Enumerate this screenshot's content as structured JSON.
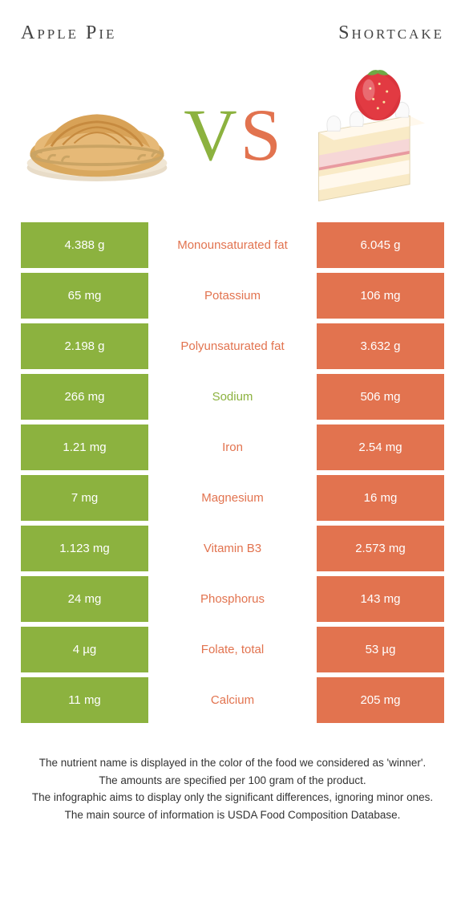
{
  "colors": {
    "left": "#8cb23f",
    "right": "#e2734f",
    "vs_v": "#8cb23f",
    "vs_s": "#e2734f",
    "bg": "#ffffff",
    "text": "#333333"
  },
  "titles": {
    "left": "Apple Pie",
    "right": "Shortcake"
  },
  "vs": {
    "v": "V",
    "s": "S"
  },
  "rows": [
    {
      "left": "4.388 g",
      "label": "Monounsaturated fat",
      "right": "6.045 g",
      "winner": "right"
    },
    {
      "left": "65 mg",
      "label": "Potassium",
      "right": "106 mg",
      "winner": "right"
    },
    {
      "left": "2.198 g",
      "label": "Polyunsaturated fat",
      "right": "3.632 g",
      "winner": "right"
    },
    {
      "left": "266 mg",
      "label": "Sodium",
      "right": "506 mg",
      "winner": "left"
    },
    {
      "left": "1.21 mg",
      "label": "Iron",
      "right": "2.54 mg",
      "winner": "right"
    },
    {
      "left": "7 mg",
      "label": "Magnesium",
      "right": "16 mg",
      "winner": "right"
    },
    {
      "left": "1.123 mg",
      "label": "Vitamin B3",
      "right": "2.573 mg",
      "winner": "right"
    },
    {
      "left": "24 mg",
      "label": "Phosphorus",
      "right": "143 mg",
      "winner": "right"
    },
    {
      "left": "4 µg",
      "label": "Folate, total",
      "right": "53 µg",
      "winner": "right"
    },
    {
      "left": "11 mg",
      "label": "Calcium",
      "right": "205 mg",
      "winner": "right"
    }
  ],
  "footer": [
    "The nutrient name is displayed in the color of the food we considered as 'winner'.",
    "The amounts are specified per 100 gram of the product.",
    "The infographic aims to display only the significant differences, ignoring minor ones.",
    "The main source of information is USDA Food Composition Database."
  ]
}
